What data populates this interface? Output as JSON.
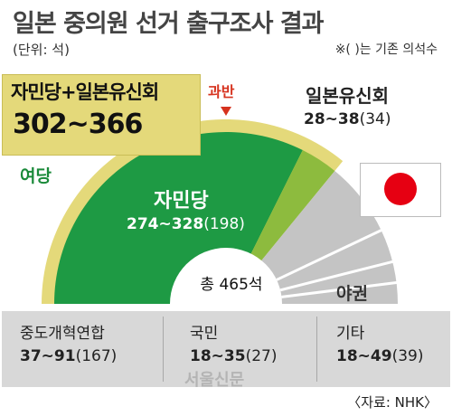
{
  "title": "일본 중의원 선거 출구조사 결과",
  "unit_note": "(단위: 석)",
  "paren_note": "※(  )는 기존 의석수",
  "ruling_label": "여당",
  "majority_label": "과반",
  "total_seats": "총 465석",
  "opposition_label": "야권",
  "source": "〈자료: NHK〉",
  "watermark": "서울신문",
  "coalition": {
    "name": "자민당+일본유신회",
    "range": "302~366"
  },
  "colors": {
    "ldp": "#1e9a44",
    "ishin": "#8dbb3e",
    "other": "#c4c4c4",
    "coalition": "#e4d97a",
    "majority": "#d6321e",
    "flag": "#e60012"
  },
  "chart_data": {
    "type": "semicircle-seat",
    "total": 465,
    "majority_marker": "과반",
    "parties": [
      {
        "name": "자민당",
        "range": "274~328",
        "min": 274,
        "max": 328,
        "previous": 198,
        "prev_label": "(198)",
        "group": "ruling"
      },
      {
        "name": "일본유신회",
        "range": "28~38",
        "min": 28,
        "max": 38,
        "previous": 34,
        "prev_label": "(34)",
        "group": "ruling"
      },
      {
        "name": "중도개혁연합",
        "range": "37~91",
        "min": 37,
        "max": 91,
        "previous": 167,
        "prev_label": "(167)",
        "group": "opposition"
      },
      {
        "name": "국민",
        "range": "18~35",
        "min": 18,
        "max": 35,
        "previous": 27,
        "prev_label": "(27)",
        "group": "opposition"
      },
      {
        "name": "기타",
        "range": "18~49",
        "min": 18,
        "max": 49,
        "previous": 39,
        "prev_label": "(39)",
        "group": "opposition"
      }
    ]
  }
}
